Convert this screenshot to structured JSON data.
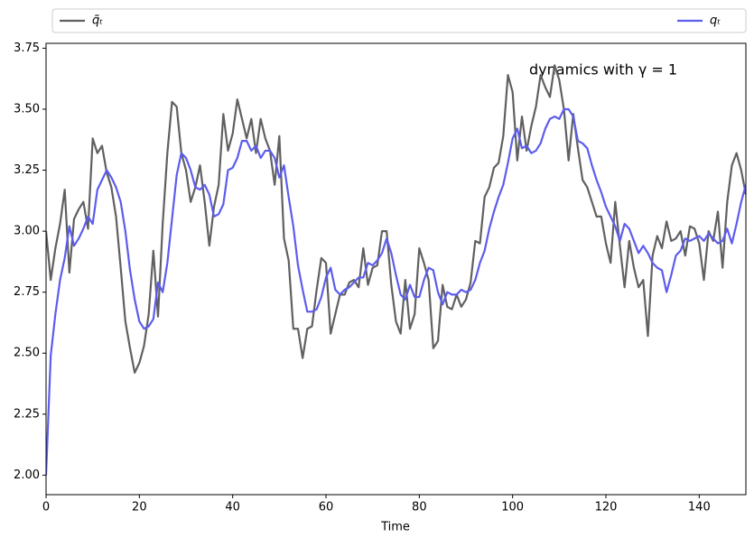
{
  "chart_data": {
    "type": "line",
    "annotation": "dynamics with γ = 1",
    "xlabel": "Time",
    "legend": "above",
    "x": [
      0,
      1,
      2,
      3,
      4,
      5,
      6,
      7,
      8,
      9,
      10,
      11,
      12,
      13,
      14,
      15,
      16,
      17,
      18,
      19,
      20,
      21,
      22,
      23,
      24,
      25,
      26,
      27,
      28,
      29,
      30,
      31,
      32,
      33,
      34,
      35,
      36,
      37,
      38,
      39,
      40,
      41,
      42,
      43,
      44,
      45,
      46,
      47,
      48,
      49,
      50,
      51,
      52,
      53,
      54,
      55,
      56,
      57,
      58,
      59,
      60,
      61,
      62,
      63,
      64,
      65,
      66,
      67,
      68,
      69,
      70,
      71,
      72,
      73,
      74,
      75,
      76,
      77,
      78,
      79,
      80,
      81,
      82,
      83,
      84,
      85,
      86,
      87,
      88,
      89,
      90,
      91,
      92,
      93,
      94,
      95,
      96,
      97,
      98,
      99,
      100,
      101,
      102,
      103,
      104,
      105,
      106,
      107,
      108,
      109,
      110,
      111,
      112,
      113,
      114,
      115,
      116,
      117,
      118,
      119,
      120,
      121,
      122,
      123,
      124,
      125,
      126,
      127,
      128,
      129,
      130,
      131,
      132,
      133,
      134,
      135,
      136,
      137,
      138,
      139,
      140,
      141,
      142,
      143,
      144,
      145,
      146,
      147,
      148,
      149,
      150
    ],
    "series": [
      {
        "name": "q̃ₜ",
        "color": "#606060",
        "values": [
          3.0,
          2.8,
          2.93,
          3.03,
          3.17,
          2.83,
          3.05,
          3.09,
          3.12,
          3.01,
          3.38,
          3.32,
          3.35,
          3.24,
          3.18,
          3.06,
          2.85,
          2.63,
          2.52,
          2.42,
          2.46,
          2.53,
          2.66,
          2.92,
          2.65,
          3.03,
          3.32,
          3.53,
          3.51,
          3.32,
          3.25,
          3.12,
          3.18,
          3.27,
          3.12,
          2.94,
          3.1,
          3.19,
          3.48,
          3.33,
          3.4,
          3.54,
          3.46,
          3.38,
          3.46,
          3.32,
          3.46,
          3.38,
          3.33,
          3.19,
          3.39,
          2.97,
          2.88,
          2.6,
          2.6,
          2.48,
          2.6,
          2.61,
          2.76,
          2.89,
          2.87,
          2.58,
          2.66,
          2.74,
          2.74,
          2.79,
          2.8,
          2.77,
          2.93,
          2.78,
          2.85,
          2.86,
          3.0,
          3.0,
          2.78,
          2.63,
          2.58,
          2.8,
          2.6,
          2.66,
          2.93,
          2.87,
          2.8,
          2.52,
          2.55,
          2.78,
          2.69,
          2.68,
          2.74,
          2.69,
          2.72,
          2.79,
          2.96,
          2.95,
          3.14,
          3.18,
          3.26,
          3.28,
          3.39,
          3.64,
          3.57,
          3.29,
          3.47,
          3.33,
          3.43,
          3.51,
          3.64,
          3.59,
          3.55,
          3.68,
          3.62,
          3.5,
          3.29,
          3.48,
          3.34,
          3.21,
          3.18,
          3.12,
          3.06,
          3.06,
          2.95,
          2.87,
          3.12,
          2.94,
          2.77,
          2.96,
          2.85,
          2.77,
          2.8,
          2.57,
          2.9,
          2.98,
          2.93,
          3.04,
          2.96,
          2.97,
          3.0,
          2.9,
          3.02,
          3.01,
          2.95,
          2.8,
          3.0,
          2.96,
          3.08,
          2.85,
          3.12,
          3.27,
          3.32,
          3.25,
          3.15
        ]
      },
      {
        "name": "qₜ",
        "color": "#5c5cee",
        "values": [
          2.0,
          2.49,
          2.66,
          2.8,
          2.89,
          3.02,
          2.94,
          2.97,
          3.01,
          3.06,
          3.03,
          3.17,
          3.21,
          3.25,
          3.22,
          3.18,
          3.12,
          3.0,
          2.84,
          2.72,
          2.63,
          2.6,
          2.61,
          2.64,
          2.79,
          2.75,
          2.87,
          3.05,
          3.23,
          3.32,
          3.3,
          3.25,
          3.18,
          3.17,
          3.19,
          3.15,
          3.06,
          3.07,
          3.11,
          3.25,
          3.26,
          3.3,
          3.37,
          3.37,
          3.33,
          3.35,
          3.3,
          3.33,
          3.33,
          3.3,
          3.22,
          3.27,
          3.14,
          3.02,
          2.86,
          2.76,
          2.67,
          2.67,
          2.68,
          2.73,
          2.81,
          2.85,
          2.76,
          2.74,
          2.76,
          2.77,
          2.79,
          2.81,
          2.81,
          2.87,
          2.86,
          2.88,
          2.91,
          2.97,
          2.91,
          2.82,
          2.74,
          2.72,
          2.78,
          2.73,
          2.73,
          2.8,
          2.85,
          2.84,
          2.75,
          2.7,
          2.75,
          2.74,
          2.74,
          2.76,
          2.75,
          2.76,
          2.8,
          2.87,
          2.92,
          3.01,
          3.08,
          3.14,
          3.19,
          3.28,
          3.38,
          3.42,
          3.34,
          3.35,
          3.32,
          3.33,
          3.36,
          3.42,
          3.46,
          3.47,
          3.46,
          3.5,
          3.5,
          3.47,
          3.37,
          3.36,
          3.34,
          3.27,
          3.21,
          3.16,
          3.1,
          3.06,
          3.02,
          2.96,
          3.03,
          3.01,
          2.96,
          2.91,
          2.94,
          2.91,
          2.87,
          2.85,
          2.84,
          2.75,
          2.82,
          2.9,
          2.92,
          2.97,
          2.96,
          2.97,
          2.98,
          2.96,
          2.99,
          2.97,
          2.95,
          2.96,
          3.01,
          2.95,
          3.03,
          3.12,
          3.19
        ]
      }
    ],
    "xlim": [
      0,
      150
    ],
    "xticks": [
      0,
      20,
      40,
      60,
      80,
      100,
      120,
      140
    ],
    "ylim": [
      1.92,
      3.77
    ],
    "yticks": [
      {
        "value": 2.0,
        "label": "2.00"
      },
      {
        "value": 2.25,
        "label": "2.25"
      },
      {
        "value": 2.5,
        "label": "2.50"
      },
      {
        "value": 2.75,
        "label": "2.75"
      },
      {
        "value": 3.0,
        "label": "3.00"
      },
      {
        "value": 3.25,
        "label": "3.25"
      },
      {
        "value": 3.5,
        "label": "3.50"
      },
      {
        "value": 3.75,
        "label": "3.75"
      }
    ]
  }
}
